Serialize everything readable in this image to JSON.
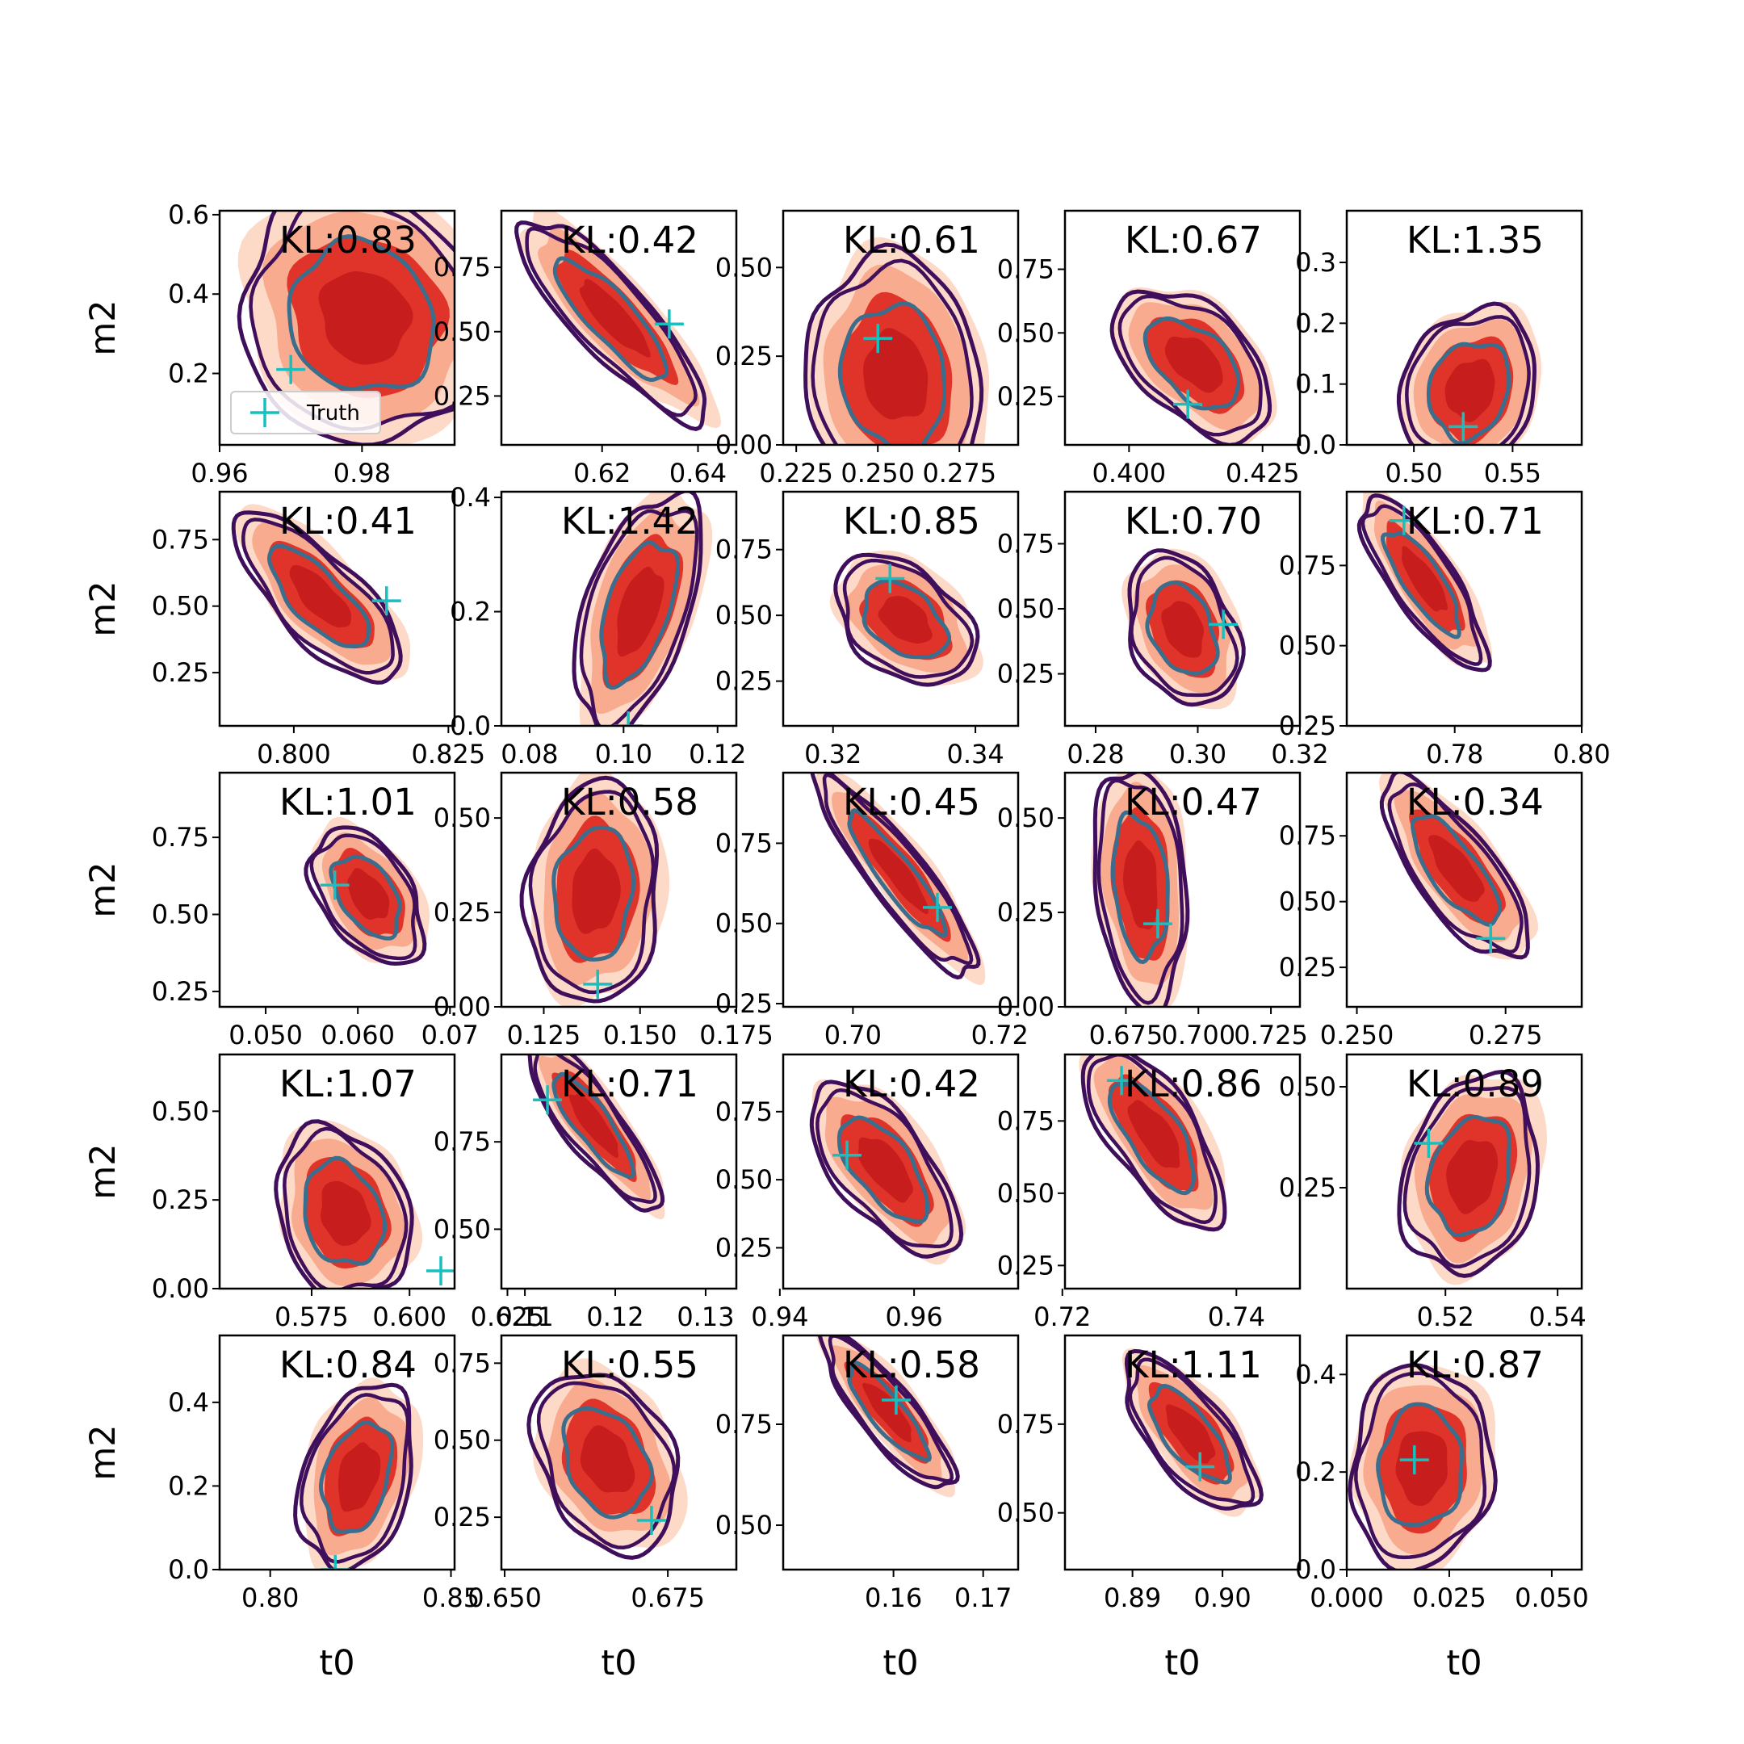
{
  "figure": {
    "xlabel": "t0",
    "ylabel": "m2",
    "kl_prefix": "KL:",
    "legend_label": "Truth"
  },
  "colors": {
    "fill_outer": "#fdd5c2",
    "fill_mid": "#f9a98c",
    "fill_inner": "#e0342a",
    "fill_core": "#c81d1d",
    "contour_outer": "#3f0f5c",
    "contour_inner": "#3b6d8c",
    "truth": "#17bfbf"
  },
  "chart_data": [
    {
      "type": "contour",
      "kl": "0.83",
      "xlim": [
        0.96,
        0.993
      ],
      "ylim": [
        0.02,
        0.61
      ],
      "xticks": [
        "0.96",
        "0.98"
      ],
      "yticks": [
        "0.2",
        "0.4",
        "0.6"
      ],
      "center": [
        0.98,
        0.34
      ],
      "spread": [
        0.007,
        0.13
      ],
      "corr": -0.1,
      "truth": [
        0.97,
        0.21
      ],
      "legend": true
    },
    {
      "type": "contour",
      "kl": "0.42",
      "xlim": [
        0.599,
        0.648
      ],
      "ylim": [
        0.06,
        0.97
      ],
      "xticks": [
        "0.62",
        "0.64"
      ],
      "yticks": [
        "0.25",
        "0.50",
        "0.75"
      ],
      "center": [
        0.622,
        0.55
      ],
      "spread": [
        0.008,
        0.16
      ],
      "corr": -0.85,
      "truth": [
        0.634,
        0.53
      ],
      "legend": false
    },
    {
      "type": "contour",
      "kl": "0.61",
      "xlim": [
        0.221,
        0.293
      ],
      "ylim": [
        0.0,
        0.66
      ],
      "xticks": [
        "0.225",
        "0.250",
        "0.275"
      ],
      "yticks": [
        "0.00",
        "0.25",
        "0.50"
      ],
      "center": [
        0.255,
        0.19
      ],
      "spread": [
        0.011,
        0.14
      ],
      "corr": -0.1,
      "truth": [
        0.25,
        0.3
      ],
      "legend": false
    },
    {
      "type": "contour",
      "kl": "0.67",
      "xlim": [
        0.388,
        0.432
      ],
      "ylim": [
        0.06,
        0.98
      ],
      "xticks": [
        "0.400",
        "0.425"
      ],
      "yticks": [
        "0.25",
        "0.50",
        "0.75"
      ],
      "center": [
        0.412,
        0.38
      ],
      "spread": [
        0.006,
        0.12
      ],
      "corr": -0.5,
      "truth": [
        0.411,
        0.22
      ],
      "legend": false
    },
    {
      "type": "contour",
      "kl": "1.35",
      "xlim": [
        0.466,
        0.585
      ],
      "ylim": [
        0.0,
        0.385
      ],
      "xticks": [
        "0.50",
        "0.55"
      ],
      "yticks": [
        "0.0",
        "0.1",
        "0.2",
        "0.3"
      ],
      "center": [
        0.528,
        0.09
      ],
      "spread": [
        0.014,
        0.055
      ],
      "corr": 0.15,
      "truth": [
        0.525,
        0.03
      ],
      "legend": false
    },
    {
      "type": "contour",
      "kl": "0.41",
      "xlim": [
        0.788,
        0.826
      ],
      "ylim": [
        0.05,
        0.93
      ],
      "xticks": [
        "0.800",
        "0.825"
      ],
      "yticks": [
        "0.25",
        "0.50",
        "0.75"
      ],
      "center": [
        0.804,
        0.53
      ],
      "spread": [
        0.0055,
        0.13
      ],
      "corr": -0.75,
      "truth": [
        0.815,
        0.52
      ],
      "legend": false
    },
    {
      "type": "contour",
      "kl": "1.42",
      "xlim": [
        0.074,
        0.124
      ],
      "ylim": [
        0.0,
        0.41
      ],
      "xticks": [
        "0.08",
        "0.10",
        "0.12"
      ],
      "yticks": [
        "0.0",
        "0.2",
        "0.4"
      ],
      "center": [
        0.103,
        0.2
      ],
      "spread": [
        0.0055,
        0.085
      ],
      "corr": 0.5,
      "truth": [
        0.101,
        0.0
      ],
      "legend": false
    },
    {
      "type": "contour",
      "kl": "0.85",
      "xlim": [
        0.313,
        0.346
      ],
      "ylim": [
        0.08,
        0.97
      ],
      "xticks": [
        "0.32",
        "0.34"
      ],
      "yticks": [
        "0.25",
        "0.50",
        "0.75"
      ],
      "center": [
        0.33,
        0.48
      ],
      "spread": [
        0.004,
        0.1
      ],
      "corr": -0.4,
      "truth": [
        0.328,
        0.64
      ],
      "legend": false
    },
    {
      "type": "contour",
      "kl": "0.70",
      "xlim": [
        0.274,
        0.32
      ],
      "ylim": [
        0.05,
        0.95
      ],
      "xticks": [
        "0.28",
        "0.30",
        "0.32"
      ],
      "yticks": [
        "0.25",
        "0.50",
        "0.75"
      ],
      "center": [
        0.297,
        0.42
      ],
      "spread": [
        0.0045,
        0.12
      ],
      "corr": -0.3,
      "truth": [
        0.305,
        0.44
      ],
      "legend": false
    },
    {
      "type": "contour",
      "kl": "0.71",
      "xlim": [
        0.763,
        0.8
      ],
      "ylim": [
        0.25,
        0.98
      ],
      "xticks": [
        "0.78",
        "0.80"
      ],
      "yticks": [
        "0.25",
        "0.50",
        "0.75"
      ],
      "center": [
        0.775,
        0.7
      ],
      "spread": [
        0.004,
        0.11
      ],
      "corr": -0.8,
      "truth": [
        0.772,
        0.89
      ],
      "legend": false
    },
    {
      "type": "contour",
      "kl": "1.01",
      "xlim": [
        0.045,
        0.0705
      ],
      "ylim": [
        0.2,
        0.96
      ],
      "xticks": [
        "0.050",
        "0.060",
        "0.07"
      ],
      "yticks": [
        "0.25",
        "0.50",
        "0.75"
      ],
      "center": [
        0.061,
        0.56
      ],
      "spread": [
        0.0025,
        0.09
      ],
      "corr": -0.45,
      "truth": [
        0.0575,
        0.595
      ],
      "legend": false
    },
    {
      "type": "contour",
      "kl": "0.58",
      "xlim": [
        0.114,
        0.175
      ],
      "ylim": [
        0.0,
        0.62
      ],
      "xticks": [
        "0.125",
        "0.150",
        "0.175"
      ],
      "yticks": [
        "0.00",
        "0.25",
        "0.50"
      ],
      "center": [
        0.138,
        0.3
      ],
      "spread": [
        0.007,
        0.12
      ],
      "corr": 0.1,
      "truth": [
        0.139,
        0.06
      ],
      "legend": false
    },
    {
      "type": "contour",
      "kl": "0.45",
      "xlim": [
        0.6905,
        0.7225
      ],
      "ylim": [
        0.24,
        0.97
      ],
      "xticks": [
        "0.70",
        "0.72"
      ],
      "yticks": [
        "0.25",
        "0.50",
        "0.75"
      ],
      "center": [
        0.706,
        0.65
      ],
      "spread": [
        0.0045,
        0.13
      ],
      "corr": -0.9,
      "truth": [
        0.7115,
        0.55
      ],
      "legend": false
    },
    {
      "type": "contour",
      "kl": "0.47",
      "xlim": [
        0.654,
        0.735
      ],
      "ylim": [
        0.0,
        0.62
      ],
      "xticks": [
        "0.675",
        "0.700",
        "0.725"
      ],
      "yticks": [
        "0.00",
        "0.25",
        "0.50"
      ],
      "center": [
        0.68,
        0.32
      ],
      "spread": [
        0.0065,
        0.13
      ],
      "corr": -0.2,
      "truth": [
        0.686,
        0.22
      ],
      "legend": false
    },
    {
      "type": "contour",
      "kl": "0.34",
      "xlim": [
        0.2483,
        0.2878
      ],
      "ylim": [
        0.1,
        0.99
      ],
      "xticks": [
        "0.250",
        "0.275"
      ],
      "yticks": [
        "0.25",
        "0.50",
        "0.75"
      ],
      "center": [
        0.2665,
        0.62
      ],
      "spread": [
        0.005,
        0.14
      ],
      "corr": -0.75,
      "truth": [
        0.2725,
        0.36
      ],
      "legend": false
    },
    {
      "type": "contour",
      "kl": "1.07",
      "xlim": [
        0.5515,
        0.6115
      ],
      "ylim": [
        0.0,
        0.66
      ],
      "xticks": [
        "0.575",
        "0.600",
        "0.625"
      ],
      "yticks": [
        "0.00",
        "0.25",
        "0.50"
      ],
      "center": [
        0.583,
        0.21
      ],
      "spread": [
        0.007,
        0.1
      ],
      "corr": -0.2,
      "truth": [
        0.608,
        0.05
      ],
      "legend": false
    },
    {
      "type": "contour",
      "kl": "0.71",
      "xlim": [
        0.1074,
        0.1334
      ],
      "ylim": [
        0.33,
        1.0
      ],
      "xticks": [
        "0.11",
        "0.12",
        "0.13"
      ],
      "yticks": [
        "0.50",
        "0.75"
      ],
      "center": [
        0.1175,
        0.8
      ],
      "spread": [
        0.003,
        0.1
      ],
      "corr": -0.85,
      "truth": [
        0.1125,
        0.87
      ],
      "legend": false
    },
    {
      "type": "contour",
      "kl": "0.42",
      "xlim": [
        0.9405,
        0.9755
      ],
      "ylim": [
        0.1,
        0.96
      ],
      "xticks": [
        "0.94",
        "0.96"
      ],
      "yticks": [
        "0.25",
        "0.50",
        "0.75"
      ],
      "center": [
        0.9555,
        0.54
      ],
      "spread": [
        0.0045,
        0.13
      ],
      "corr": -0.65,
      "truth": [
        0.95,
        0.59
      ],
      "legend": false
    },
    {
      "type": "contour",
      "kl": "0.86",
      "xlim": [
        0.7203,
        0.7473
      ],
      "ylim": [
        0.17,
        0.98
      ],
      "xticks": [
        "0.72",
        "0.74"
      ],
      "yticks": [
        "0.25",
        "0.50",
        "0.75"
      ],
      "center": [
        0.7305,
        0.7
      ],
      "spread": [
        0.0033,
        0.13
      ],
      "corr": -0.7,
      "truth": [
        0.7268,
        0.89
      ],
      "legend": false
    },
    {
      "type": "contour",
      "kl": "0.89",
      "xlim": [
        0.5024,
        0.5443
      ],
      "ylim": [
        0.0,
        0.58
      ],
      "xticks": [
        "0.52",
        "0.54"
      ],
      "yticks": [
        "0.25",
        "0.50"
      ],
      "center": [
        0.5245,
        0.28
      ],
      "spread": [
        0.005,
        0.1
      ],
      "corr": 0.2,
      "truth": [
        0.517,
        0.36
      ],
      "legend": false
    },
    {
      "type": "contour",
      "kl": "0.84",
      "xlim": [
        0.786,
        0.851
      ],
      "ylim": [
        0.0,
        0.56
      ],
      "xticks": [
        "0.80",
        "0.85"
      ],
      "yticks": [
        "0.0",
        "0.2",
        "0.4"
      ],
      "center": [
        0.824,
        0.22
      ],
      "spread": [
        0.0065,
        0.09
      ],
      "corr": 0.3,
      "truth": [
        0.818,
        0.0
      ],
      "legend": false
    },
    {
      "type": "contour",
      "kl": "0.55",
      "xlim": [
        0.6495,
        0.6855
      ],
      "ylim": [
        0.08,
        0.84
      ],
      "xticks": [
        "0.650",
        "0.675"
      ],
      "yticks": [
        "0.25",
        "0.50",
        "0.75"
      ],
      "center": [
        0.6655,
        0.43
      ],
      "spread": [
        0.0045,
        0.12
      ],
      "corr": -0.3,
      "truth": [
        0.6725,
        0.24
      ],
      "legend": false
    },
    {
      "type": "contour",
      "kl": "0.58",
      "xlim": [
        0.1477,
        0.1739
      ],
      "ylim": [
        0.39,
        0.97
      ],
      "xticks": [
        "0.16",
        "0.17"
      ],
      "yticks": [
        "0.50",
        "0.75"
      ],
      "center": [
        0.1593,
        0.78
      ],
      "spread": [
        0.003,
        0.08
      ],
      "corr": -0.85,
      "truth": [
        0.1603,
        0.81
      ],
      "legend": false
    },
    {
      "type": "contour",
      "kl": "1.11",
      "xlim": [
        0.8825,
        0.9086
      ],
      "ylim": [
        0.34,
        1.0
      ],
      "xticks": [
        "0.89",
        "0.90"
      ],
      "yticks": [
        "0.50",
        "0.75"
      ],
      "center": [
        0.8963,
        0.72
      ],
      "spread": [
        0.003,
        0.09
      ],
      "corr": -0.7,
      "truth": [
        0.8975,
        0.63
      ],
      "legend": false
    },
    {
      "type": "contour",
      "kl": "0.87",
      "xlim": [
        0.0,
        0.0573
      ],
      "ylim": [
        0.0,
        0.48
      ],
      "xticks": [
        "0.000",
        "0.025",
        "0.050"
      ],
      "yticks": [
        "0.0",
        "0.2",
        "0.4"
      ],
      "center": [
        0.018,
        0.21
      ],
      "spread": [
        0.007,
        0.085
      ],
      "corr": 0.05,
      "truth": [
        0.0165,
        0.225
      ],
      "legend": false
    }
  ]
}
